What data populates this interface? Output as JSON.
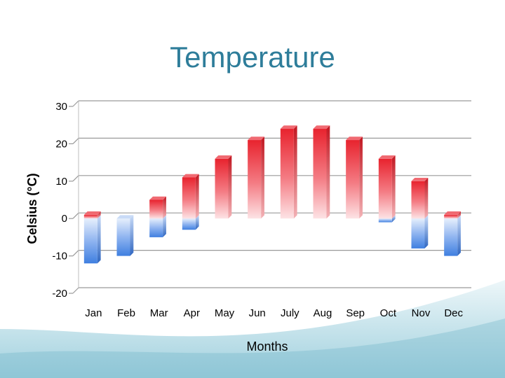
{
  "chart_data": {
    "type": "bar",
    "title": "Temperature",
    "xlabel": "Months",
    "ylabel": "Celsius (°C)",
    "categories": [
      "Jan",
      "Feb",
      "Mar",
      "Apr",
      "May",
      "Jun",
      "July",
      "Aug",
      "Sep",
      "Oct",
      "Nov",
      "Dec"
    ],
    "series": [
      {
        "name": "",
        "values": [
          1,
          0,
          5,
          11,
          16,
          21,
          24,
          24,
          21,
          16,
          10,
          1
        ],
        "color": "#e8232e"
      },
      {
        "name": "",
        "values": [
          -12,
          -10,
          -5,
          -3,
          0,
          0,
          0,
          0,
          0,
          -1,
          -8,
          -10
        ],
        "color": "#3f7fe0"
      }
    ],
    "yticks": [
      "30",
      "20",
      "10",
      "0",
      "-10",
      "-20"
    ],
    "ylim": [
      -20,
      30
    ],
    "grid": true
  },
  "colors": {
    "title": "#2e7d9a",
    "warm_bar": "#e8232e",
    "cold_bar": "#3f7fe0",
    "gridline": "#9a9a9a"
  }
}
